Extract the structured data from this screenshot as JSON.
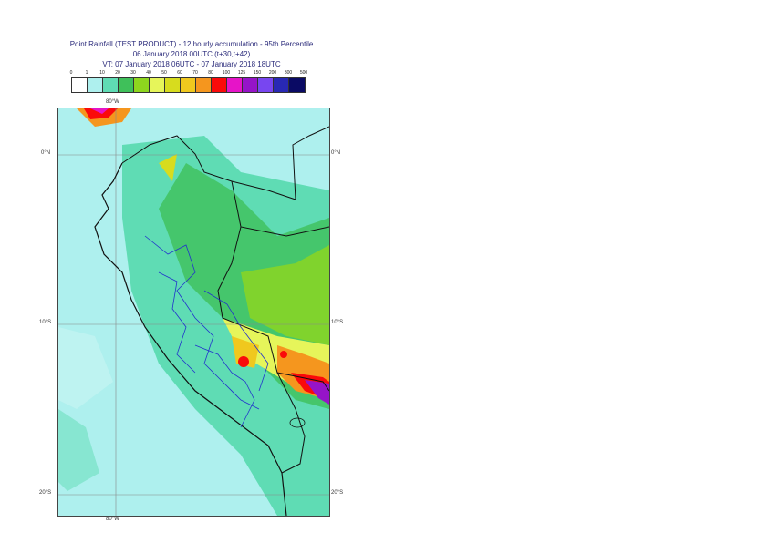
{
  "title": {
    "line1": "Point Rainfall (TEST PRODUCT) - 12 hourly accumulation - 95th Percentile",
    "line2": "06 January 2018 00UTC (t+30,t+42)",
    "line3": "VT: 07 January 2018 06UTC - 07 January 2018 18UTC"
  },
  "legend": {
    "labels": [
      "0",
      "1",
      "10",
      "20",
      "30",
      "40",
      "50",
      "60",
      "70",
      "80",
      "100",
      "125",
      "150",
      "200",
      "300",
      "500"
    ],
    "colors": [
      "#ffffff",
      "#aef0ee",
      "#5fdcb4",
      "#3fc05a",
      "#8ed61e",
      "#e6f55a",
      "#d7dc1e",
      "#f0c81e",
      "#f5961e",
      "#fa0a0a",
      "#e614c8",
      "#9614c8",
      "#7846f0",
      "#2828b4",
      "#0a0a64"
    ]
  },
  "map": {
    "lat_labels": [
      "0°N",
      "10°S",
      "20°S"
    ],
    "lon_labels": [
      "80°W",
      "80°W"
    ]
  }
}
